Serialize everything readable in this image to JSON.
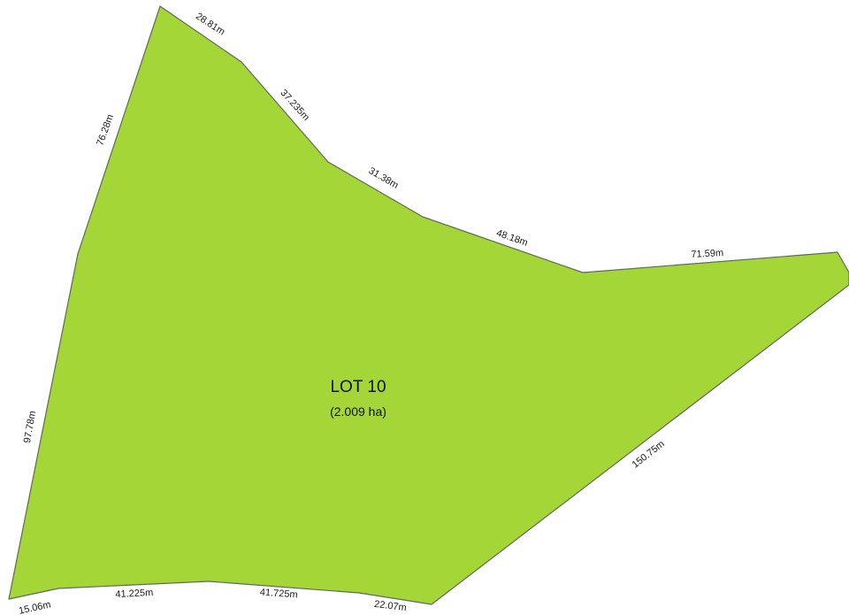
{
  "lot": {
    "name": "LOT 10",
    "area": "(2.009 ha)",
    "fill_color": "#a3d636",
    "edge_color": "#5f6b5a"
  },
  "boundary_dimensions": [
    {
      "id": "dim-top-left",
      "text": "28.81m"
    },
    {
      "id": "dim-upper-left-diag",
      "text": "37.235m"
    },
    {
      "id": "dim-upper-mid",
      "text": "31.38m"
    },
    {
      "id": "dim-upper-right",
      "text": "48.18m"
    },
    {
      "id": "dim-top-right",
      "text": "71.59m"
    },
    {
      "id": "dim-right-diag",
      "text": "150.75m"
    },
    {
      "id": "dim-bottom-right",
      "text": "22.07m"
    },
    {
      "id": "dim-bottom-mid-right",
      "text": "41.725m"
    },
    {
      "id": "dim-bottom-mid-left",
      "text": "41.225m"
    },
    {
      "id": "dim-bottom-left",
      "text": "15.06m"
    },
    {
      "id": "dim-left-lower",
      "text": "97.78m"
    },
    {
      "id": "dim-left-upper",
      "text": "76.28m"
    }
  ]
}
